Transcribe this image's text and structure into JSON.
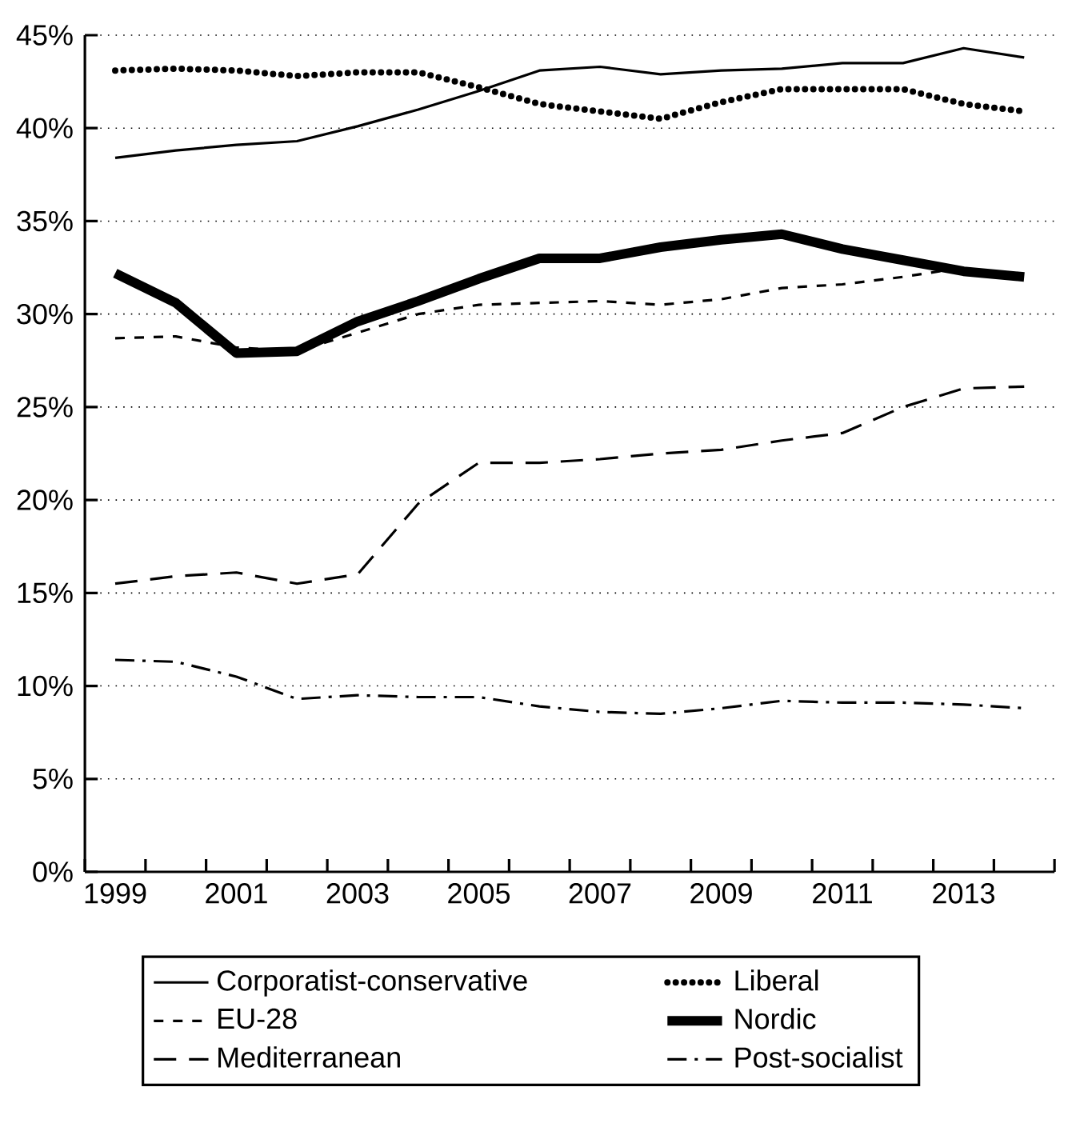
{
  "chart_data": {
    "type": "line",
    "categories": [
      "1999",
      null,
      "2001",
      null,
      "2003",
      null,
      "2005",
      null,
      "2007",
      null,
      "2009",
      null,
      "2011",
      null,
      "2013",
      null
    ],
    "ylim": [
      0,
      45
    ],
    "yticks": [
      {
        "value": 0,
        "label": "0%"
      },
      {
        "value": 5,
        "label": "5%"
      },
      {
        "value": 10,
        "label": "10%"
      },
      {
        "value": 15,
        "label": "15%"
      },
      {
        "value": 20,
        "label": "20%"
      },
      {
        "value": 25,
        "label": "25%"
      },
      {
        "value": 30,
        "label": "30%"
      },
      {
        "value": 35,
        "label": "35%"
      },
      {
        "value": 40,
        "label": "40%"
      },
      {
        "value": 45,
        "label": "45%"
      }
    ],
    "grid": "y",
    "legend": "bottom",
    "series": [
      {
        "name": "Corporatist-conservative",
        "color": "#000000",
        "line_style": "solid",
        "values": [
          38.4,
          38.8,
          39.1,
          39.3,
          40.1,
          41.0,
          42.0,
          43.1,
          43.3,
          42.9,
          43.1,
          43.2,
          43.5,
          43.5,
          44.3,
          43.8
        ]
      },
      {
        "name": "Liberal",
        "color": "#000000",
        "line_style": "dotted",
        "values": [
          43.1,
          43.2,
          43.1,
          42.8,
          43.0,
          43.0,
          42.2,
          41.3,
          40.9,
          40.5,
          41.4,
          42.1,
          42.1,
          42.1,
          41.3,
          40.9
        ]
      },
      {
        "name": "EU-28",
        "color": "#000000",
        "line_style": "dashed",
        "values": [
          28.7,
          28.8,
          28.2,
          28.0,
          29.0,
          30.0,
          30.5,
          30.6,
          30.7,
          30.5,
          30.8,
          31.4,
          31.6,
          32.0,
          32.5,
          null
        ]
      },
      {
        "name": "Nordic",
        "color": "#000000",
        "line_style": "solid",
        "values": [
          32.2,
          30.6,
          27.9,
          28.0,
          29.6,
          30.7,
          31.9,
          33.0,
          33.0,
          33.6,
          34.0,
          34.3,
          33.5,
          32.9,
          32.3,
          32.0
        ]
      },
      {
        "name": "Mediterranean",
        "color": "#000000",
        "line_style": "long dashed",
        "values": [
          15.5,
          15.9,
          16.1,
          15.5,
          16.0,
          19.8,
          22.0,
          22.0,
          22.2,
          22.5,
          22.7,
          23.2,
          23.6,
          25.0,
          26.0,
          26.1
        ]
      },
      {
        "name": "Post-socialist",
        "color": "#000000",
        "line_style": "dashdot",
        "values": [
          11.4,
          11.3,
          10.5,
          9.3,
          9.5,
          9.4,
          9.4,
          8.9,
          8.6,
          8.5,
          8.8,
          9.2,
          9.1,
          9.1,
          9.0,
          8.8
        ]
      }
    ]
  }
}
